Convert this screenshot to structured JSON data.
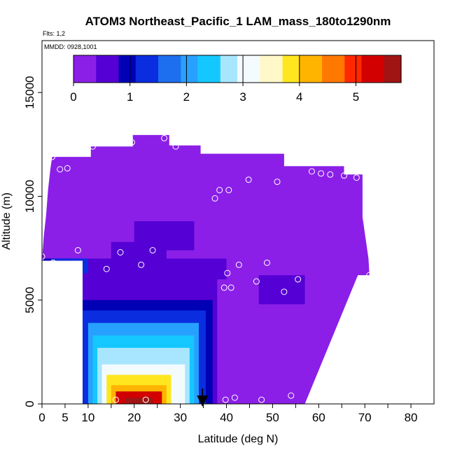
{
  "chart_data": {
    "type": "heatmap",
    "title": "ATOM3 Northeast_Pacific_1 LAM_mass_180to1290nm",
    "subtitle_flights": "Flts: 1,2",
    "subtitle_dates": "MMDD: 0928,1001",
    "xlabel": "Latitude (deg N)",
    "ylabel": "Altitude (m)",
    "xlim": [
      0,
      85
    ],
    "ylim": [
      0,
      17500
    ],
    "x_ticks": [
      0,
      5,
      10,
      20,
      30,
      40,
      50,
      60,
      70,
      80
    ],
    "x_tick_labels": [
      "0",
      "5",
      "10",
      "20",
      "30",
      "40",
      "50",
      "60",
      "70",
      "80"
    ],
    "x_minor_ticks": [
      15,
      25,
      35,
      45,
      55,
      65,
      75
    ],
    "y_ticks": [
      0,
      5000,
      10000,
      15000
    ],
    "y_tick_labels": [
      "0",
      "5000",
      "10000",
      "15000"
    ],
    "colorbar": {
      "min": 0,
      "max": 5.8,
      "ticks": [
        0,
        1,
        2,
        3,
        4,
        5
      ],
      "tick_labels": [
        "0",
        "1",
        "2",
        "3",
        "4",
        "5"
      ],
      "colors": [
        "#8b1fe8",
        "#5500d4",
        "#0000b4",
        "#0a2de0",
        "#1e6ef0",
        "#28a0ff",
        "#14c8ff",
        "#a8e6ff",
        "#f4fbff",
        "#fff8c8",
        "#ffe61e",
        "#ffb400",
        "#ff7800",
        "#ff2800",
        "#d20000",
        "#a01414"
      ]
    },
    "background_value": 0.05,
    "domain_outline": [
      [
        0,
        6900
      ],
      [
        0.4,
        8100
      ],
      [
        0.9,
        9100
      ],
      [
        1.3,
        10300
      ],
      [
        1.8,
        11300
      ],
      [
        2.2,
        11900
      ],
      [
        10.6,
        11900
      ],
      [
        10.6,
        12400
      ],
      [
        19.7,
        12400
      ],
      [
        19.7,
        12950
      ],
      [
        27.6,
        12950
      ],
      [
        27.6,
        12450
      ],
      [
        34.4,
        12450
      ],
      [
        34.4,
        12050
      ],
      [
        52.5,
        12050
      ],
      [
        52.5,
        11450
      ],
      [
        65.5,
        11450
      ],
      [
        65.5,
        11050
      ],
      [
        69.5,
        11050
      ],
      [
        69.5,
        9000
      ],
      [
        70.8,
        7000
      ],
      [
        71,
        6200
      ],
      [
        68.5,
        6200
      ],
      [
        57,
        0
      ],
      [
        8.8,
        0
      ],
      [
        8.8,
        6900
      ]
    ],
    "patches": [
      {
        "lat_min": 0.3,
        "lat_max": 40,
        "alt_min": 5900,
        "alt_max": 7000,
        "value": 0.6
      },
      {
        "lat_min": 0.3,
        "lat_max": 7,
        "alt_min": 0,
        "alt_max": 7000,
        "value": 0.9
      },
      {
        "lat_min": 4,
        "lat_max": 38,
        "alt_min": 0,
        "alt_max": 5900,
        "value": 0.7
      },
      {
        "lat_min": 6,
        "lat_max": 37,
        "alt_min": 0,
        "alt_max": 5000,
        "value": 1.0
      },
      {
        "lat_min": 8,
        "lat_max": 35.5,
        "alt_min": 0,
        "alt_max": 4500,
        "value": 1.4
      },
      {
        "lat_min": 10,
        "lat_max": 34,
        "alt_min": 0,
        "alt_max": 3900,
        "value": 1.9
      },
      {
        "lat_min": 11,
        "lat_max": 33,
        "alt_min": 0,
        "alt_max": 3300,
        "value": 2.3
      },
      {
        "lat_min": 12,
        "lat_max": 32,
        "alt_min": 0,
        "alt_max": 2700,
        "value": 2.8
      },
      {
        "lat_min": 13,
        "lat_max": 31,
        "alt_min": 0,
        "alt_max": 1900,
        "value": 3.2
      },
      {
        "lat_min": 14,
        "lat_max": 28,
        "alt_min": 0,
        "alt_max": 1400,
        "value": 3.8
      },
      {
        "lat_min": 15,
        "lat_max": 27,
        "alt_min": 0,
        "alt_max": 900,
        "value": 4.3
      },
      {
        "lat_min": 16,
        "lat_max": 26,
        "alt_min": 0,
        "alt_max": 600,
        "value": 5.1
      },
      {
        "lat_min": 18,
        "lat_max": 24,
        "alt_min": 0,
        "alt_max": 300,
        "value": 5.6
      },
      {
        "lat_min": 2,
        "lat_max": 10,
        "alt_min": 6300,
        "alt_max": 7000,
        "value": 1.3
      },
      {
        "lat_min": 15,
        "lat_max": 27,
        "alt_min": 6800,
        "alt_max": 7800,
        "value": 0.5
      },
      {
        "lat_min": 20,
        "lat_max": 33,
        "alt_min": 7400,
        "alt_max": 8800,
        "value": 0.6
      },
      {
        "lat_min": 38,
        "lat_max": 59,
        "alt_min": 2000,
        "alt_max": 6000,
        "value": 0.35
      },
      {
        "lat_min": 47,
        "lat_max": 57,
        "alt_min": 4800,
        "alt_max": 6200,
        "value": 0.7
      }
    ],
    "flight_points": [
      [
        0,
        7100
      ],
      [
        1,
        200
      ],
      [
        2.2,
        11900
      ],
      [
        2.4,
        6800
      ],
      [
        3.9,
        11300
      ],
      [
        4.9,
        6300
      ],
      [
        5.2,
        200
      ],
      [
        5.5,
        11350
      ],
      [
        7.8,
        7400
      ],
      [
        11,
        12400
      ],
      [
        14,
        6500
      ],
      [
        16,
        200
      ],
      [
        17,
        7300
      ],
      [
        19.5,
        12600
      ],
      [
        21.5,
        6700
      ],
      [
        22.5,
        200
      ],
      [
        24,
        7400
      ],
      [
        26.5,
        12800
      ],
      [
        29,
        12400
      ],
      [
        37.5,
        9900
      ],
      [
        38.5,
        10300
      ],
      [
        39.5,
        5600
      ],
      [
        39.8,
        200
      ],
      [
        40.2,
        6300
      ],
      [
        40.5,
        10300
      ],
      [
        41,
        5600
      ],
      [
        41.8,
        300
      ],
      [
        42.7,
        6700
      ],
      [
        44.8,
        10800
      ],
      [
        46.5,
        5900
      ],
      [
        47.6,
        200
      ],
      [
        48.8,
        6800
      ],
      [
        51,
        10700
      ],
      [
        52.5,
        5400
      ],
      [
        54,
        400
      ],
      [
        55.5,
        6000
      ],
      [
        58.5,
        11200
      ],
      [
        60.5,
        11100
      ],
      [
        62.5,
        11050
      ],
      [
        65.5,
        11000
      ],
      [
        68.2,
        10900
      ],
      [
        71,
        6200
      ]
    ],
    "arrow_lat": 34.8,
    "legend_placement": "inside-top"
  }
}
